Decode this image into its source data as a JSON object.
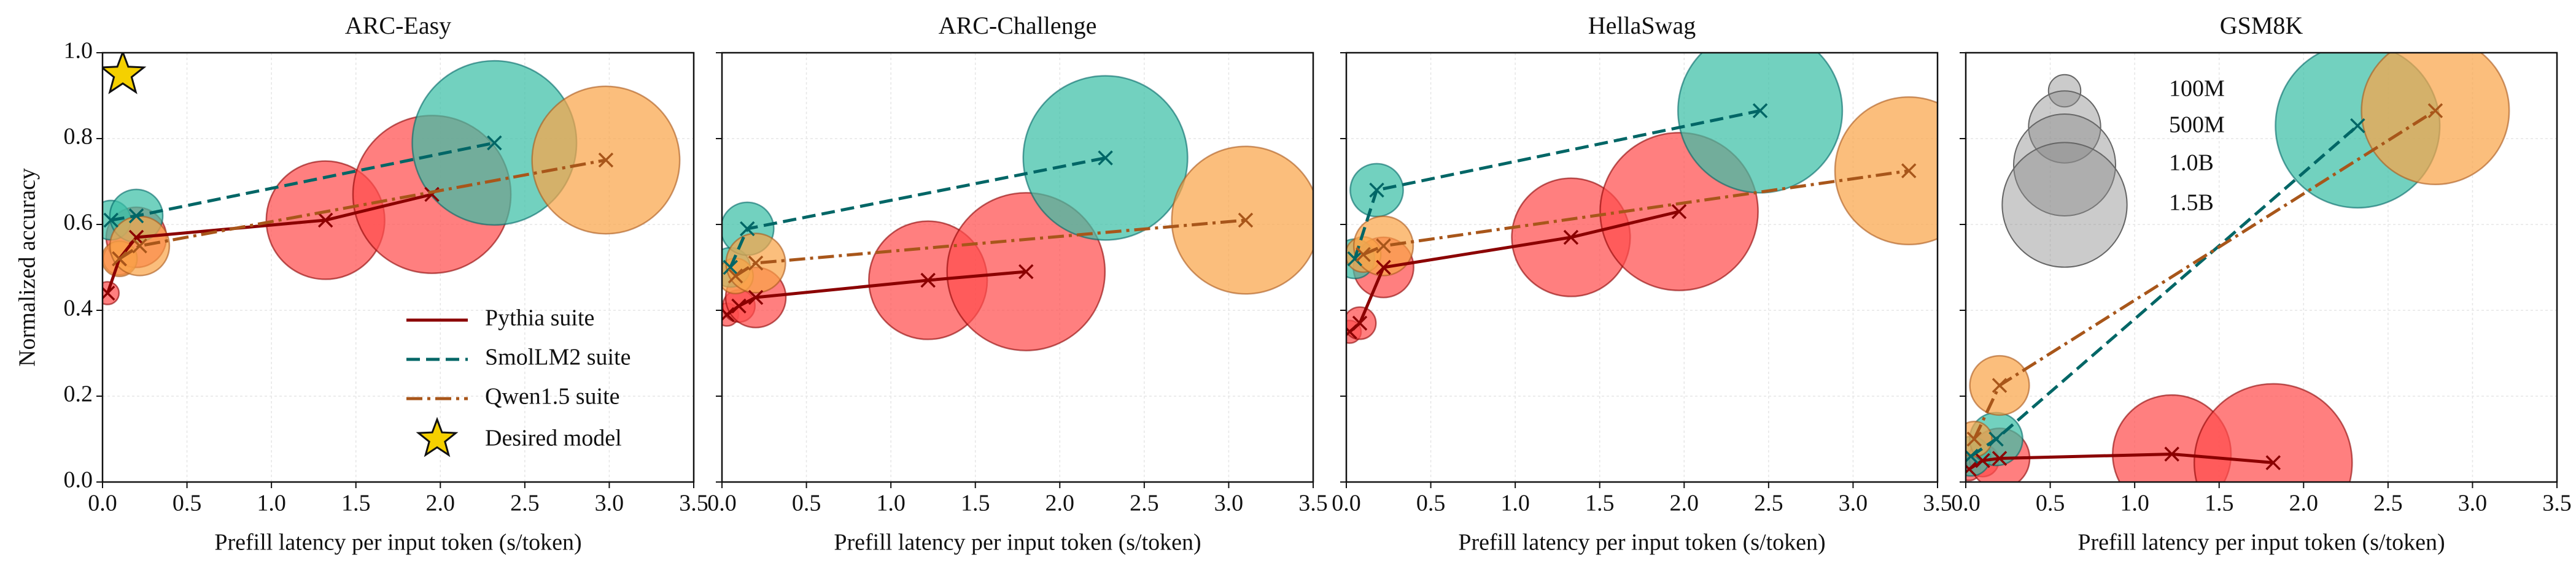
{
  "chart_data": [
    {
      "type": "scatter",
      "title": "ARC-Easy",
      "xlabel": "Prefill latency per input token (s/token)",
      "ylabel": "Normalized accuracy",
      "xlim": [
        0,
        3.5
      ],
      "ylim": [
        0,
        1
      ],
      "xticks": [
        {
          "value": 0,
          "label": "0.0"
        },
        0.5,
        {
          "value": 1,
          "label": "1.0"
        },
        1.5,
        {
          "value": 2,
          "label": "2.0"
        },
        2.5,
        {
          "value": 3,
          "label": "3.0"
        },
        3.5
      ],
      "yticks": [
        {
          "value": 0,
          "label": "0.0"
        },
        0.2,
        0.4,
        0.6,
        0.8,
        {
          "value": 1,
          "label": "1.0"
        }
      ],
      "grid": true,
      "legend": "lower right",
      "series": [
        {
          "name": "Pythia suite",
          "color": "#8b0000",
          "fill": "#ff4d4d",
          "linestyle": "solid",
          "x": [
            0.03,
            0.1,
            0.2,
            1.32,
            1.95
          ],
          "values": [
            0.44,
            0.52,
            0.57,
            0.61,
            0.67
          ],
          "sizes": [
            0.05,
            0.1,
            0.35,
            1.35,
            2.4
          ]
        },
        {
          "name": "SmolLM2 suite",
          "color": "#006666",
          "fill": "#3cbfa6",
          "linestyle": "dashed",
          "x": [
            0.05,
            0.2,
            2.32
          ],
          "values": [
            0.61,
            0.62,
            0.79
          ],
          "sizes": [
            0.15,
            0.27,
            2.6
          ]
        },
        {
          "name": "Qwen1.5 suite",
          "color": "#a8561a",
          "fill": "#f9a54a",
          "linestyle": "dashdot",
          "x": [
            0.1,
            0.22,
            2.98
          ],
          "values": [
            0.52,
            0.55,
            0.75
          ],
          "sizes": [
            0.12,
            0.34,
            2.1
          ]
        }
      ],
      "highlight": {
        "name": "Desired model",
        "x": 0.12,
        "y": 0.95,
        "color": "#f5d000"
      }
    },
    {
      "type": "scatter",
      "title": "ARC-Challenge",
      "xlabel": "Prefill latency per input token (s/token)",
      "xlim": [
        0,
        3.5
      ],
      "ylim": [
        0,
        1
      ],
      "sharey": true,
      "xticks": [
        {
          "value": 0,
          "label": "0.0"
        },
        0.5,
        {
          "value": 1,
          "label": "1.0"
        },
        1.5,
        {
          "value": 2,
          "label": "2.0"
        },
        2.5,
        {
          "value": 3,
          "label": "3.0"
        },
        3.5
      ],
      "grid": true,
      "series": [
        {
          "color": "#8b0000",
          "fill": "#ff4d4d",
          "linestyle": "solid",
          "x": [
            0.03,
            0.1,
            0.2,
            1.22,
            1.8
          ],
          "values": [
            0.39,
            0.41,
            0.43,
            0.47,
            0.49
          ],
          "sizes": [
            0.05,
            0.1,
            0.35,
            1.35,
            2.4
          ]
        },
        {
          "color": "#006666",
          "fill": "#3cbfa6",
          "linestyle": "dashed",
          "x": [
            0.05,
            0.15,
            2.27
          ],
          "values": [
            0.5,
            0.59,
            0.755
          ],
          "sizes": [
            0.15,
            0.27,
            2.6
          ]
        },
        {
          "color": "#a8561a",
          "fill": "#f9a54a",
          "linestyle": "dashdot",
          "x": [
            0.08,
            0.2,
            3.1
          ],
          "values": [
            0.48,
            0.51,
            0.61
          ],
          "sizes": [
            0.12,
            0.34,
            2.1
          ]
        }
      ]
    },
    {
      "type": "scatter",
      "title": "HellaSwag",
      "xlabel": "Prefill latency per input token (s/token)",
      "xlim": [
        0,
        3.5
      ],
      "ylim": [
        0,
        1
      ],
      "sharey": true,
      "xticks": [
        {
          "value": 0,
          "label": "0.0"
        },
        0.5,
        {
          "value": 1,
          "label": "1.0"
        },
        1.5,
        {
          "value": 2,
          "label": "2.0"
        },
        2.5,
        {
          "value": 3,
          "label": "3.0"
        },
        3.5
      ],
      "grid": true,
      "series": [
        {
          "color": "#8b0000",
          "fill": "#ff4d4d",
          "linestyle": "solid",
          "x": [
            0.02,
            0.08,
            0.22,
            1.33,
            1.97
          ],
          "values": [
            0.35,
            0.37,
            0.5,
            0.57,
            0.63
          ],
          "sizes": [
            0.05,
            0.1,
            0.35,
            1.35,
            2.4
          ]
        },
        {
          "color": "#006666",
          "fill": "#3cbfa6",
          "linestyle": "dashed",
          "x": [
            0.05,
            0.18,
            2.45
          ],
          "values": [
            0.52,
            0.68,
            0.865
          ],
          "sizes": [
            0.15,
            0.27,
            2.6
          ]
        },
        {
          "color": "#a8561a",
          "fill": "#f9a54a",
          "linestyle": "dashdot",
          "x": [
            0.1,
            0.22,
            3.33
          ],
          "values": [
            0.53,
            0.55,
            0.725
          ],
          "sizes": [
            0.12,
            0.34,
            2.1
          ]
        }
      ]
    },
    {
      "type": "scatter",
      "title": "GSM8K",
      "xlabel": "Prefill latency per input token (s/token)",
      "xlim": [
        0,
        3.5
      ],
      "ylim": [
        0,
        1
      ],
      "sharey": true,
      "xticks": [
        {
          "value": 0,
          "label": "0.0"
        },
        0.5,
        {
          "value": 1,
          "label": "1.0"
        },
        1.5,
        {
          "value": 2,
          "label": "2.0"
        },
        2.5,
        {
          "value": 3,
          "label": "3.0"
        },
        3.5
      ],
      "grid": true,
      "series": [
        {
          "color": "#8b0000",
          "fill": "#ff4d4d",
          "linestyle": "solid",
          "x": [
            0.02,
            0.1,
            0.2,
            1.22,
            1.82
          ],
          "values": [
            0.03,
            0.05,
            0.055,
            0.065,
            0.045
          ],
          "sizes": [
            0.05,
            0.1,
            0.35,
            1.35,
            2.4
          ]
        },
        {
          "color": "#006666",
          "fill": "#3cbfa6",
          "linestyle": "dashed",
          "x": [
            0.03,
            0.18,
            2.32
          ],
          "values": [
            0.06,
            0.1,
            0.83
          ],
          "sizes": [
            0.15,
            0.27,
            2.6
          ]
        },
        {
          "color": "#a8561a",
          "fill": "#f9a54a",
          "linestyle": "dashdot",
          "x": [
            0.05,
            0.2,
            2.78
          ],
          "values": [
            0.1,
            0.225,
            0.865
          ],
          "sizes": [
            0.12,
            0.34,
            2.1
          ]
        }
      ],
      "size_legend": [
        {
          "value": 0.1,
          "label": "100M"
        },
        {
          "value": 0.5,
          "label": "500M"
        },
        {
          "value": 1.0,
          "label": "1.0B"
        },
        {
          "value": 1.5,
          "label": "1.5B"
        }
      ]
    }
  ]
}
